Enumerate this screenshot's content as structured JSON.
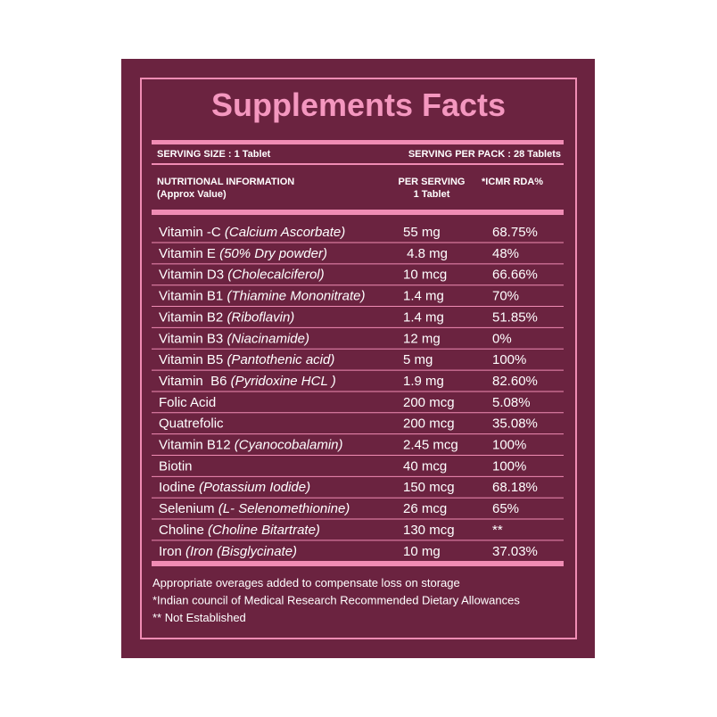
{
  "title": "Supplements Facts",
  "serving_size": "SERVING SIZE : 1 Tablet",
  "serving_per_pack": "SERVING PER PACK : 28 Tablets",
  "header": {
    "col1_line1": "NUTRITIONAL INFORMATION",
    "col1_line2": "(Approx Value)",
    "col2_line1": "PER SERVING",
    "col2_line2": "1 Tablet",
    "col3": "*ICMR RDA%"
  },
  "rows": [
    {
      "name": "Vitamin -C ",
      "source": "(Calcium Ascorbate)",
      "per_serving": "55 mg",
      "rda": "68.75%"
    },
    {
      "name": "Vitamin E ",
      "source": "(50% Dry powder)",
      "per_serving": " 4.8 mg",
      "rda": "48%"
    },
    {
      "name": "Vitamin D3 ",
      "source": "(Cholecalciferol)",
      "per_serving": "10 mcg",
      "rda": "66.66%"
    },
    {
      "name": "Vitamin B1 ",
      "source": "(Thiamine Mononitrate)",
      "per_serving": "1.4 mg",
      "rda": "70%"
    },
    {
      "name": "Vitamin B2 ",
      "source": "(Riboflavin)",
      "per_serving": "1.4 mg",
      "rda": "51.85%"
    },
    {
      "name": "Vitamin B3 ",
      "source": "(Niacinamide)",
      "per_serving": "12 mg",
      "rda": "0%"
    },
    {
      "name": "Vitamin B5 ",
      "source": "(Pantothenic acid)",
      "per_serving": "5 mg",
      "rda": "100%"
    },
    {
      "name": "Vitamin  B6 ",
      "source": "(Pyridoxine HCL )",
      "per_serving": "1.9 mg",
      "rda": "82.60%"
    },
    {
      "name": "Folic Acid",
      "source": null,
      "per_serving": "200 mcg",
      "rda": "5.08%"
    },
    {
      "name": "Quatrefolic",
      "source": null,
      "per_serving": "200 mcg",
      "rda": "35.08%"
    },
    {
      "name": "Vitamin B12 ",
      "source": "(Cyanocobalamin)",
      "per_serving": "2.45 mcg",
      "rda": "100%"
    },
    {
      "name": "Biotin",
      "source": null,
      "per_serving": "40 mcg",
      "rda": "100%"
    },
    {
      "name": "Iodine ",
      "source": "(Potassium Iodide)",
      "per_serving": "150 mcg",
      "rda": "68.18%"
    },
    {
      "name": "Selenium ",
      "source": "(L- Selenomethionine)",
      "per_serving": "26 mcg",
      "rda": "65%"
    },
    {
      "name": "Choline ",
      "source": "(Choline Bitartrate)",
      "per_serving": "130 mcg",
      "rda": "**"
    },
    {
      "name": "Iron ",
      "source": "(Iron (Bisglycinate)",
      "per_serving": "10 mg",
      "rda": "37.03%"
    }
  ],
  "footnotes": [
    "Appropriate overages added to compensate loss on storage",
    "*Indian council of Medical Research Recommended Dietary Allowances",
    "** Not Established"
  ]
}
